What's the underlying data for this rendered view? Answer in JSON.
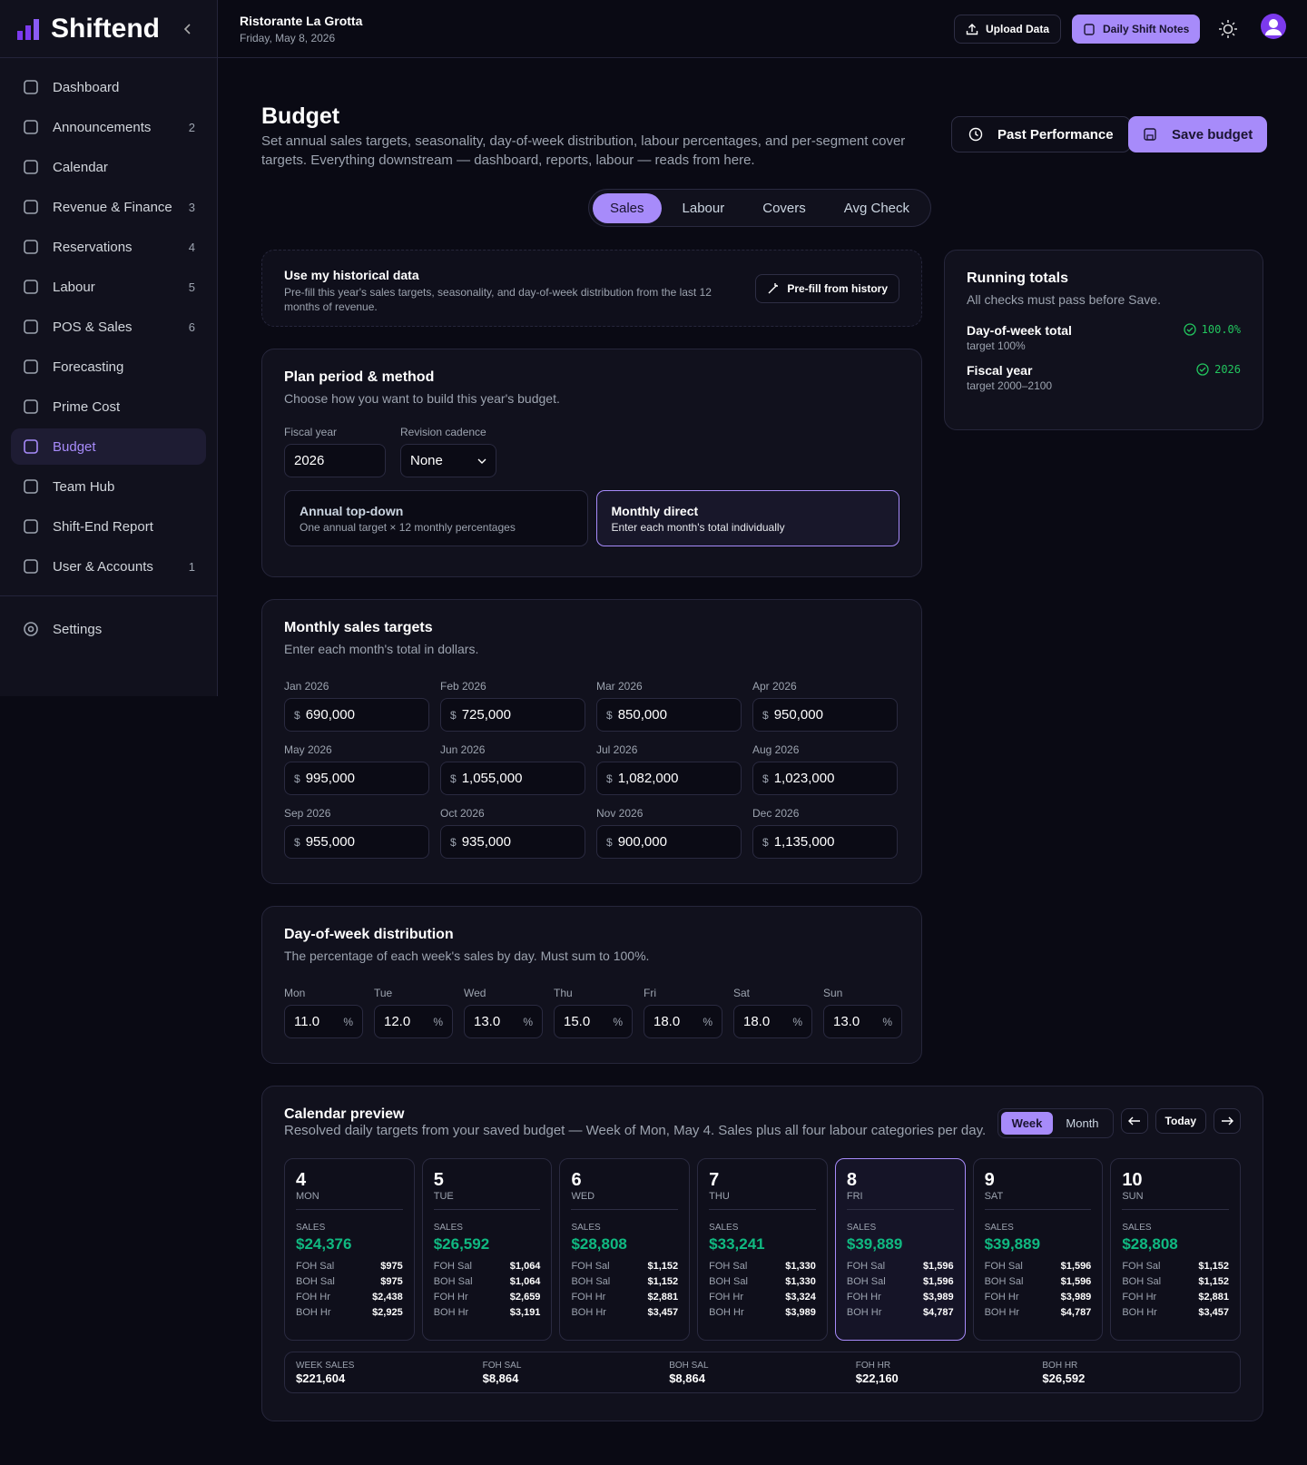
{
  "sidebar": {
    "brand": "Shiftend",
    "nav": [
      {
        "label": "Dashboard"
      },
      {
        "label": "Announcements",
        "badge": "2"
      },
      {
        "label": "Calendar"
      },
      {
        "label": "Revenue & Finance",
        "badge": "3"
      },
      {
        "label": "Reservations",
        "badge": "4"
      },
      {
        "label": "Labour",
        "badge": "5"
      },
      {
        "label": "POS & Sales",
        "badge": "6"
      },
      {
        "label": "Forecasting"
      },
      {
        "label": "Prime Cost"
      },
      {
        "label": "Budget",
        "active": true
      },
      {
        "label": "Team Hub"
      },
      {
        "label": "Shift-End Report"
      },
      {
        "label": "User & Accounts",
        "badge": "1"
      }
    ],
    "settings": "Settings"
  },
  "header": {
    "restaurant": "Ristorante La Grotta",
    "date": "Friday, May 8, 2026",
    "upload": "Upload Data",
    "notes": "Daily Shift Notes"
  },
  "page": {
    "title": "Budget",
    "description": "Set annual sales targets, seasonality, day-of-week distribution, labour percentages, and per-segment cover targets. Everything downstream — dashboard, reports, labour — reads from here.",
    "past": "Past Performance",
    "save": "Save budget"
  },
  "tabs": [
    {
      "label": "Sales",
      "active": true
    },
    {
      "label": "Labour"
    },
    {
      "label": "Covers"
    },
    {
      "label": "Avg Check"
    }
  ],
  "historical": {
    "title": "Use my historical data",
    "description": "Pre-fill this year's sales targets, seasonality, and day-of-week distribution from the last 12 months of revenue.",
    "button": "Pre-fill from history"
  },
  "plan": {
    "title": "Plan period & method",
    "subtitle": "Choose how you want to build this year's budget.",
    "fiscal_year_label": "Fiscal year",
    "fiscal_year": "2026",
    "cadence_label": "Revision cadence",
    "cadence": "None",
    "methods": [
      {
        "title": "Annual top-down",
        "description": "One annual target × 12 monthly percentages"
      },
      {
        "title": "Monthly direct",
        "description": "Enter each month's total individually",
        "selected": true
      }
    ]
  },
  "monthly": {
    "title": "Monthly sales targets",
    "subtitle": "Enter each month's total in dollars.",
    "currency": "$",
    "months": [
      {
        "label": "Jan 2026",
        "value": "690,000"
      },
      {
        "label": "Feb 2026",
        "value": "725,000"
      },
      {
        "label": "Mar 2026",
        "value": "850,000"
      },
      {
        "label": "Apr 2026",
        "value": "950,000"
      },
      {
        "label": "May 2026",
        "value": "995,000"
      },
      {
        "label": "Jun 2026",
        "value": "1,055,000"
      },
      {
        "label": "Jul 2026",
        "value": "1,082,000"
      },
      {
        "label": "Aug 2026",
        "value": "1,023,000"
      },
      {
        "label": "Sep 2026",
        "value": "955,000"
      },
      {
        "label": "Oct 2026",
        "value": "935,000"
      },
      {
        "label": "Nov 2026",
        "value": "900,000"
      },
      {
        "label": "Dec 2026",
        "value": "1,135,000"
      }
    ]
  },
  "dow": {
    "title": "Day-of-week distribution",
    "subtitle": "The percentage of each week's sales by day. Must sum to 100%.",
    "unit": "%",
    "days": [
      {
        "label": "Mon",
        "value": "11.0"
      },
      {
        "label": "Tue",
        "value": "12.0"
      },
      {
        "label": "Wed",
        "value": "13.0"
      },
      {
        "label": "Thu",
        "value": "15.0"
      },
      {
        "label": "Fri",
        "value": "18.0"
      },
      {
        "label": "Sat",
        "value": "18.0"
      },
      {
        "label": "Sun",
        "value": "13.0"
      }
    ]
  },
  "running": {
    "title": "Running totals",
    "subtitle": "All checks must pass before Save.",
    "checks": [
      {
        "label": "Day-of-week total",
        "target": "target 100%",
        "value": "100.0%"
      },
      {
        "label": "Fiscal year",
        "target": "target 2000–2100",
        "value": "2026"
      }
    ]
  },
  "calendar": {
    "title": "Calendar preview",
    "subtitle": "Resolved daily targets from your saved budget — Week of Mon, May 4. Sales plus all four labour categories per day.",
    "views": [
      {
        "label": "Week",
        "active": true
      },
      {
        "label": "Month"
      }
    ],
    "today": "Today",
    "sales_label": "SALES",
    "row_labels": [
      "FOH Sal",
      "BOH Sal",
      "FOH Hr",
      "BOH Hr"
    ],
    "days": [
      {
        "date": "4",
        "dow": "MON",
        "sales": "$24,376",
        "values": [
          "$975",
          "$975",
          "$2,438",
          "$2,925"
        ]
      },
      {
        "date": "5",
        "dow": "TUE",
        "sales": "$26,592",
        "values": [
          "$1,064",
          "$1,064",
          "$2,659",
          "$3,191"
        ]
      },
      {
        "date": "6",
        "dow": "WED",
        "sales": "$28,808",
        "values": [
          "$1,152",
          "$1,152",
          "$2,881",
          "$3,457"
        ]
      },
      {
        "date": "7",
        "dow": "THU",
        "sales": "$33,241",
        "values": [
          "$1,330",
          "$1,330",
          "$3,324",
          "$3,989"
        ]
      },
      {
        "date": "8",
        "dow": "FRI",
        "sales": "$39,889",
        "values": [
          "$1,596",
          "$1,596",
          "$3,989",
          "$4,787"
        ],
        "highlight": true
      },
      {
        "date": "9",
        "dow": "SAT",
        "sales": "$39,889",
        "values": [
          "$1,596",
          "$1,596",
          "$3,989",
          "$4,787"
        ]
      },
      {
        "date": "10",
        "dow": "SUN",
        "sales": "$28,808",
        "values": [
          "$1,152",
          "$1,152",
          "$2,881",
          "$3,457"
        ]
      }
    ],
    "summary": [
      {
        "label": "WEEK SALES",
        "value": "$221,604"
      },
      {
        "label": "FOH SAL",
        "value": "$8,864"
      },
      {
        "label": "BOH SAL",
        "value": "$8,864"
      },
      {
        "label": "FOH HR",
        "value": "$22,160"
      },
      {
        "label": "BOH HR",
        "value": "$26,592"
      }
    ]
  }
}
